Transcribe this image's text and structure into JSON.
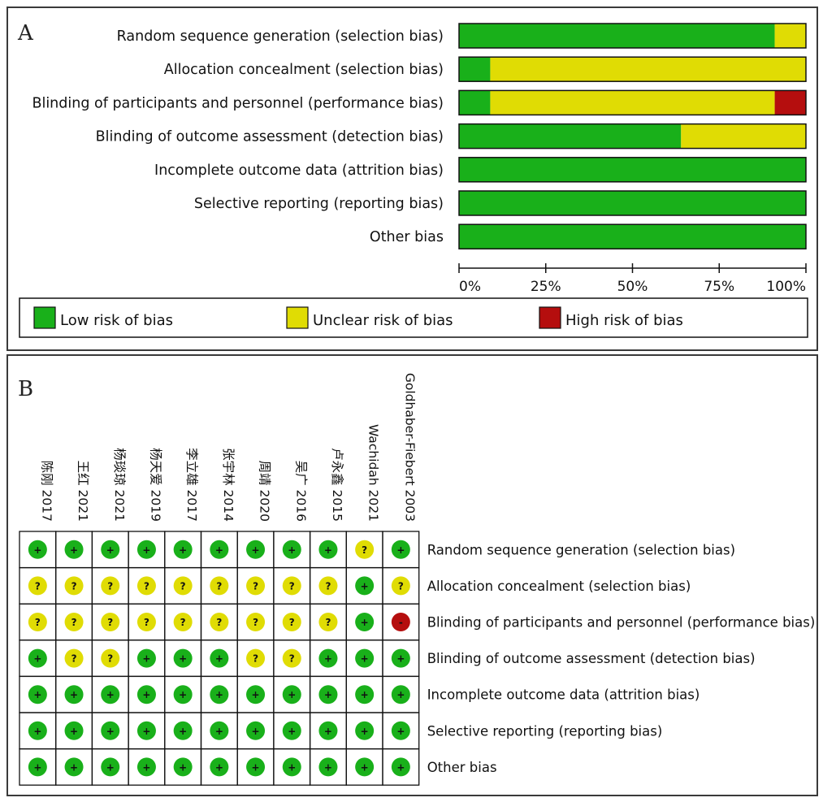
{
  "panel_a_label": "A",
  "panel_b_label": "B",
  "colors": {
    "low": "#19b01a",
    "unclear": "#e0dc04",
    "high": "#b50e0e",
    "sym_dark": "#111111"
  },
  "chart_data": [
    {
      "type": "bar",
      "orientation": "horizontal",
      "stacked": true,
      "categories": [
        "Random sequence generation (selection bias)",
        "Allocation concealment (selection bias)",
        "Blinding of participants and personnel (performance bias)",
        "Blinding of outcome assessment (detection bias)",
        "Incomplete outcome data (attrition bias)",
        "Selective reporting (reporting bias)",
        "Other bias"
      ],
      "series": [
        {
          "name": "Low risk of bias",
          "values": [
            91,
            9,
            9,
            64,
            100,
            100,
            100
          ]
        },
        {
          "name": "Unclear risk of bias",
          "values": [
            9,
            91,
            82,
            36,
            0,
            0,
            0
          ]
        },
        {
          "name": "High risk of bias",
          "values": [
            0,
            0,
            9,
            0,
            0,
            0,
            0
          ]
        }
      ],
      "xlim": [
        0,
        100
      ],
      "x_ticks": [
        "0%",
        "25%",
        "50%",
        "75%",
        "100%"
      ],
      "legend": "bottom"
    },
    {
      "type": "table",
      "studies": [
        "陈刚 2017",
        "王红 2021",
        "杨琰琼 2021",
        "杨天爱 2019",
        "李立雄 2017",
        "张宇林 2014",
        "周靖 2020",
        "吴广 2016",
        "卢永鑫 2015",
        "Wachidah 2021",
        "Goldhaber-Fiebert 2003"
      ],
      "domains": [
        "Random sequence generation (selection bias)",
        "Allocation concealment (selection bias)",
        "Blinding of participants and personnel (performance bias)",
        "Blinding of outcome assessment (detection bias)",
        "Incomplete outcome data (attrition bias)",
        "Selective reporting (reporting bias)",
        "Other bias"
      ],
      "ratings": [
        [
          "low",
          "low",
          "low",
          "low",
          "low",
          "low",
          "low",
          "low",
          "low",
          "unclear",
          "low"
        ],
        [
          "unclear",
          "unclear",
          "unclear",
          "unclear",
          "unclear",
          "unclear",
          "unclear",
          "unclear",
          "unclear",
          "low",
          "unclear"
        ],
        [
          "unclear",
          "unclear",
          "unclear",
          "unclear",
          "unclear",
          "unclear",
          "unclear",
          "unclear",
          "unclear",
          "low",
          "high"
        ],
        [
          "low",
          "unclear",
          "unclear",
          "low",
          "low",
          "low",
          "unclear",
          "unclear",
          "low",
          "low",
          "low"
        ],
        [
          "low",
          "low",
          "low",
          "low",
          "low",
          "low",
          "low",
          "low",
          "low",
          "low",
          "low"
        ],
        [
          "low",
          "low",
          "low",
          "low",
          "low",
          "low",
          "low",
          "low",
          "low",
          "low",
          "low"
        ],
        [
          "low",
          "low",
          "low",
          "low",
          "low",
          "low",
          "low",
          "low",
          "low",
          "low",
          "low"
        ]
      ],
      "symbols": {
        "low": "+",
        "unclear": "?",
        "high": "-"
      }
    }
  ]
}
